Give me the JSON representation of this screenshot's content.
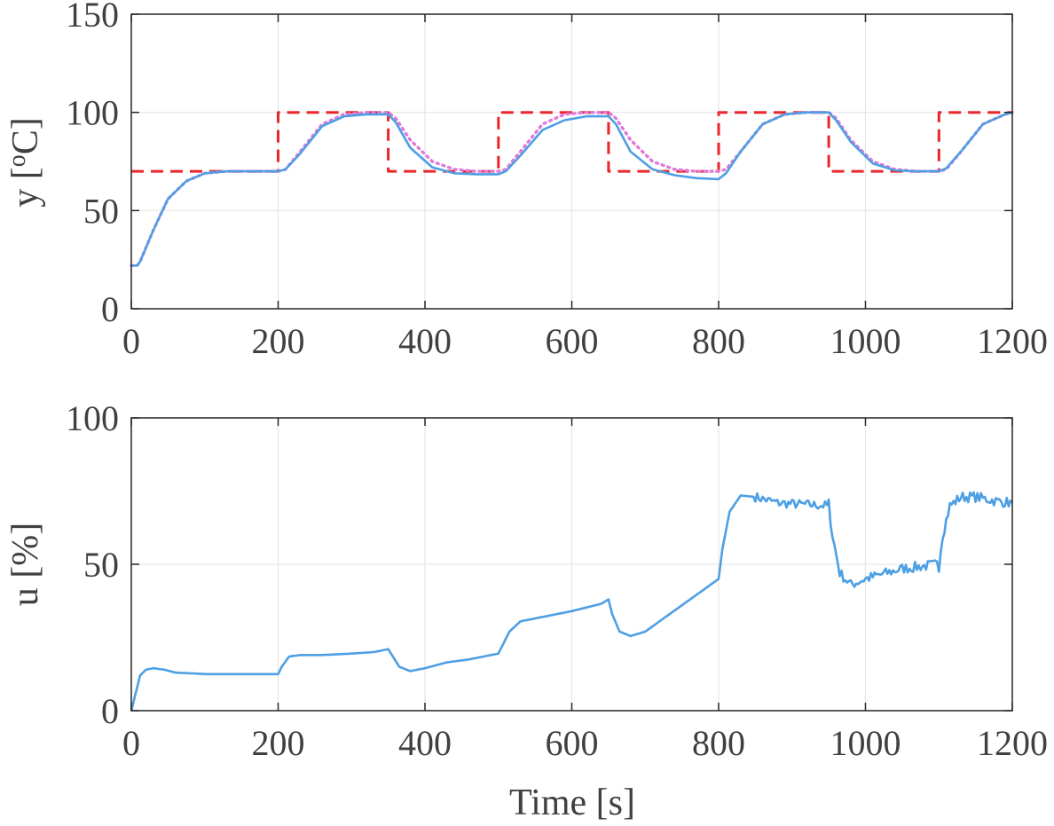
{
  "chart_data": [
    {
      "type": "line",
      "ylabel_prefix": "y [",
      "ylabel_super": "o",
      "ylabel_suffix": "C]",
      "xlim": [
        0,
        1200
      ],
      "ylim": [
        0,
        150
      ],
      "xticks": [
        0,
        200,
        400,
        600,
        800,
        1000,
        1200
      ],
      "yticks": [
        0,
        50,
        100,
        150
      ],
      "grid": true,
      "series": [
        {
          "style": "dashed",
          "color": "#e8262b",
          "x": [
            0,
            200,
            200,
            350,
            350,
            500,
            500,
            650,
            650,
            800,
            800,
            950,
            950,
            1100,
            1100,
            1200
          ],
          "values": [
            70,
            70,
            100,
            100,
            70,
            70,
            100,
            100,
            70,
            70,
            100,
            100,
            70,
            70,
            100,
            100
          ]
        },
        {
          "style": "dotted",
          "color": "#e07ad8",
          "x": [
            0,
            8,
            12,
            30,
            50,
            75,
            100,
            130,
            200,
            210,
            230,
            260,
            290,
            320,
            350,
            360,
            380,
            410,
            440,
            470,
            500,
            510,
            530,
            560,
            590,
            620,
            650,
            660,
            680,
            710,
            740,
            770,
            800,
            810,
            830,
            860,
            890,
            920,
            950,
            960,
            980,
            1010,
            1040,
            1070,
            1100,
            1110,
            1130,
            1160,
            1190,
            1200
          ],
          "values": [
            22,
            22,
            24,
            40,
            56,
            65,
            69,
            70,
            70,
            71,
            80,
            94,
            99,
            100,
            100,
            97,
            86,
            75,
            71,
            70,
            70,
            71,
            80,
            94,
            99,
            100,
            100,
            97,
            86,
            75,
            71,
            70,
            70,
            71,
            80,
            94,
            99,
            100,
            100,
            97,
            86,
            75,
            71,
            70,
            70,
            71,
            80,
            94,
            99,
            100
          ]
        },
        {
          "style": "solid",
          "color": "#4d9fe4",
          "x": [
            0,
            8,
            12,
            30,
            50,
            75,
            100,
            130,
            200,
            210,
            230,
            260,
            290,
            320,
            350,
            360,
            380,
            410,
            440,
            470,
            500,
            510,
            530,
            560,
            590,
            620,
            650,
            660,
            680,
            710,
            740,
            770,
            800,
            810,
            830,
            860,
            890,
            920,
            950,
            960,
            980,
            1010,
            1040,
            1070,
            1100,
            1110,
            1130,
            1160,
            1190,
            1200
          ],
          "values": [
            22,
            22,
            24,
            40,
            56,
            65,
            69,
            70,
            70,
            71,
            79,
            93,
            98,
            99,
            99,
            95,
            82,
            72,
            69,
            68.5,
            68.5,
            70,
            78,
            91,
            96,
            98,
            98,
            94,
            80,
            71,
            68,
            66.5,
            66,
            69,
            80,
            94,
            99,
            100,
            100,
            96,
            85,
            74,
            70.5,
            70,
            70,
            71.5,
            80,
            94,
            99,
            100
          ]
        }
      ]
    },
    {
      "type": "line",
      "xlabel": "Time [s]",
      "ylabel": "u [%]",
      "xlim": [
        0,
        1200
      ],
      "ylim": [
        0,
        100
      ],
      "xticks": [
        0,
        200,
        400,
        600,
        800,
        1000,
        1200
      ],
      "yticks": [
        0,
        50,
        100
      ],
      "grid": true,
      "series": [
        {
          "style": "solid",
          "color": "#4d9fe4",
          "x": [
            0,
            5,
            12,
            20,
            30,
            45,
            60,
            100,
            150,
            200,
            205,
            215,
            230,
            260,
            300,
            330,
            350,
            355,
            365,
            380,
            400,
            430,
            460,
            500,
            505,
            515,
            530,
            560,
            600,
            640,
            650,
            655,
            665,
            680,
            700,
            750,
            800,
            805,
            815,
            830,
            850,
            880,
            910,
            950,
            955,
            965,
            980,
            1000,
            1050,
            1100,
            1105,
            1115,
            1130,
            1150,
            1180,
            1200
          ],
          "values": [
            0,
            5,
            12,
            14,
            14.5,
            14,
            13,
            12.5,
            12.5,
            12.5,
            15,
            18.5,
            19,
            19,
            19.5,
            20,
            21,
            19,
            15,
            13.5,
            14.5,
            16.5,
            17.5,
            19.5,
            22,
            27,
            30.5,
            32,
            34,
            36.5,
            38,
            33,
            27,
            25.5,
            27,
            36,
            45,
            55,
            68,
            73.5,
            73,
            71,
            70.5,
            70,
            60,
            47,
            43,
            45,
            48.5,
            50,
            60,
            70,
            73,
            73,
            71.5,
            71
          ],
          "noise": [
            [
              850,
              950,
              1.6
            ],
            [
              950,
              1100,
              1.8
            ],
            [
              1100,
              1200,
              1.8
            ]
          ]
        }
      ]
    }
  ]
}
